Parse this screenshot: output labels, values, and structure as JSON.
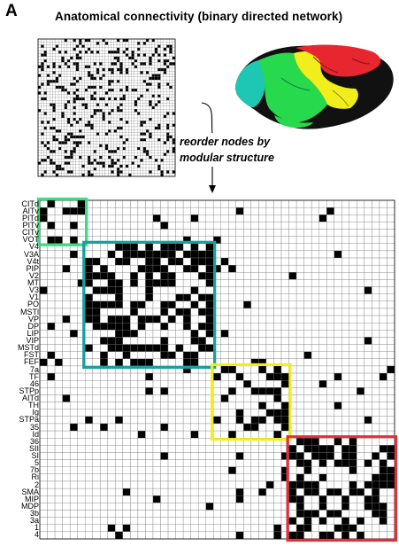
{
  "panel": {
    "letter": "A",
    "title": "Anatomical connectivity (binary directed network)",
    "reorder_line1": "reorder nodes by",
    "reorder_line2": "modular structure"
  },
  "nodes": [
    "CITd",
    "AITv",
    "PITd",
    "PITv",
    "CITv",
    "VOT",
    "V4",
    "V3A",
    "V4t",
    "PIP",
    "V2",
    "MT",
    "V3",
    "V1",
    "PO",
    "MSTl",
    "VP",
    "DP",
    "LIP",
    "VIP",
    "MSTd",
    "FST",
    "FEF",
    "7a",
    "TF",
    "46",
    "STPp",
    "AITd",
    "TH",
    "Ig",
    "STPa",
    "35",
    "Id",
    "36",
    "SII",
    "SI",
    "5",
    "7b",
    "Ri",
    "2",
    "SMA",
    "MIP",
    "MDP",
    "3b",
    "3a",
    "1",
    "4"
  ],
  "modules": [
    {
      "name": "module-1",
      "color": "#3ddc84",
      "start": 0,
      "end": 5
    },
    {
      "name": "module-2",
      "color": "#1a9e9e",
      "start": 6,
      "end": 22
    },
    {
      "name": "module-3",
      "color": "#f2ee1c",
      "start": 23,
      "end": 32
    },
    {
      "name": "module-4",
      "color": "#e0303c",
      "start": 33,
      "end": 46
    }
  ],
  "brain_colors": [
    "#e8262f",
    "#f2ee1c",
    "#1ec6b4",
    "#27d94c",
    "#111111"
  ]
}
